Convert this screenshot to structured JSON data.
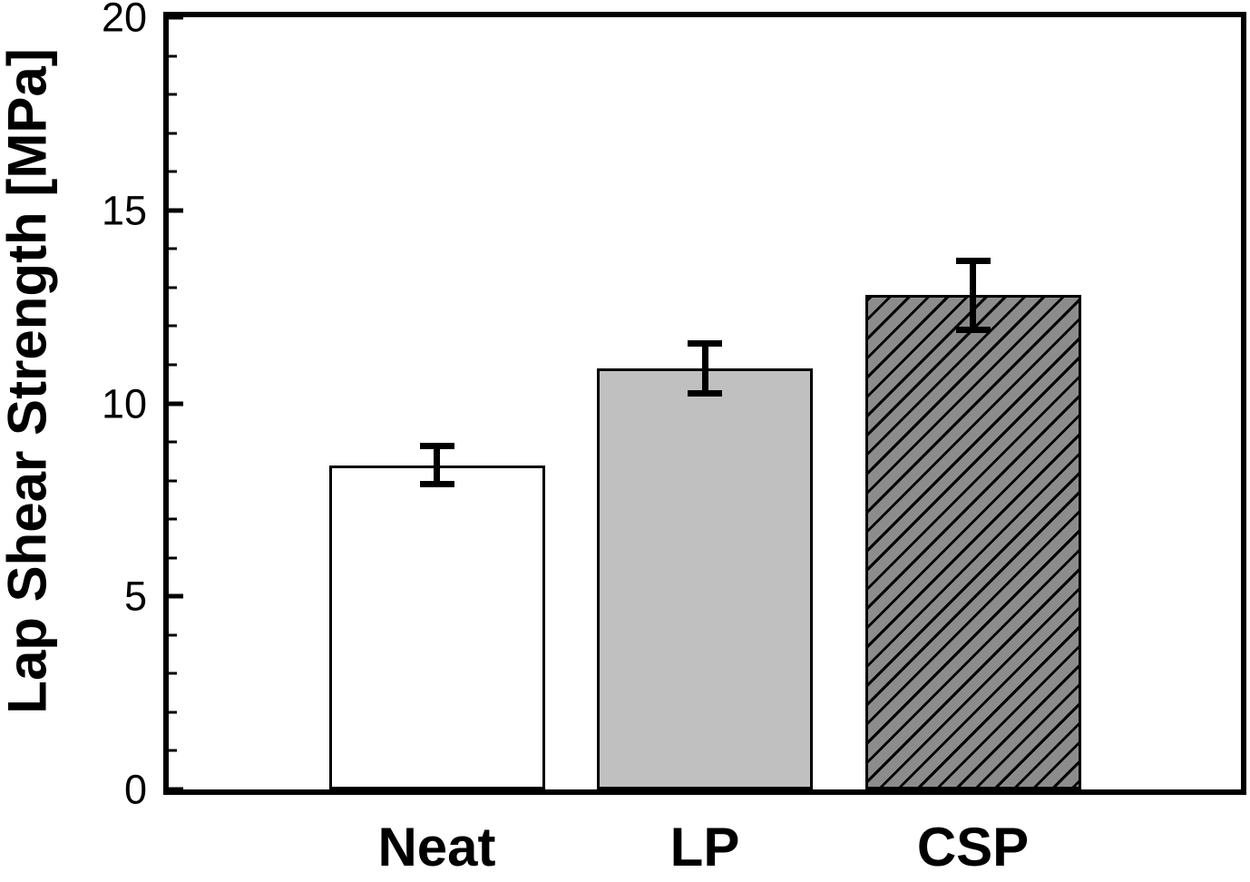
{
  "chart_data": {
    "type": "bar",
    "title": "",
    "xlabel": "",
    "ylabel": "Lap Shear Strength [MPa]",
    "ylim": [
      0,
      20
    ],
    "y_major_ticks": [
      0,
      5,
      10,
      15,
      20
    ],
    "y_minor_step": 1,
    "grid": false,
    "legend": null,
    "categories": [
      "Neat",
      "LP",
      "CSP"
    ],
    "series": [
      {
        "name": "Lap Shear Strength",
        "values": [
          8.4,
          10.9,
          12.8
        ],
        "errors": [
          0.5,
          0.65,
          0.9
        ]
      }
    ],
    "bar_styles": [
      {
        "fill": "#ffffff",
        "hatch": "none"
      },
      {
        "fill": "#c0c0c0",
        "hatch": "none"
      },
      {
        "fill": "#8c8c8c",
        "hatch": "diagonal-forward"
      }
    ],
    "colors": {
      "frame": "#000000",
      "error_bar": "#000000",
      "hatch_line": "#000000",
      "background": "#ffffff"
    }
  }
}
